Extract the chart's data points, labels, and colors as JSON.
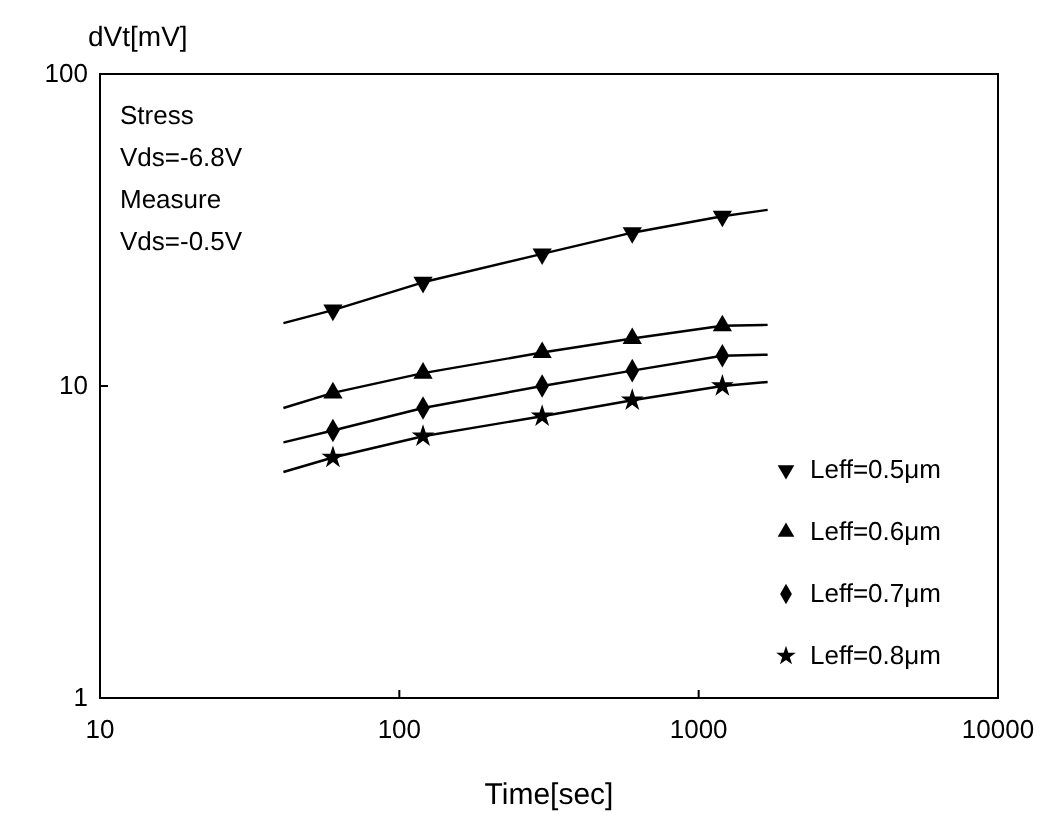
{
  "chart_data": {
    "type": "scatter",
    "xlabel": "Time[sec]",
    "ylabel": "dVt[mV]",
    "log": "xy",
    "xlim": [
      10,
      10000
    ],
    "ylim": [
      1,
      100
    ],
    "xticks": [
      10,
      100,
      1000,
      10000
    ],
    "yticks": [
      1,
      10,
      100
    ],
    "grid": false,
    "legend": "bottom right",
    "annotations": [
      "Stress",
      "Vds=-6.8V",
      "Measure",
      "Vds=-0.5V"
    ],
    "series": [
      {
        "name": "Leff=0.5μm",
        "color": "#000000",
        "marker": "triangle-down",
        "x": [
          60,
          120,
          300,
          600,
          1200
        ],
        "values": [
          17.5,
          21.5,
          26.5,
          31,
          35
        ]
      },
      {
        "name": "Leff=0.6μm",
        "color": "#000000",
        "marker": "triangle",
        "x": [
          60,
          120,
          300,
          600,
          1200
        ],
        "values": [
          9.5,
          11,
          12.8,
          14.2,
          15.6
        ]
      },
      {
        "name": "Leff=0.7μm",
        "color": "#000000",
        "marker": "diamond",
        "x": [
          60,
          120,
          300,
          600,
          1200
        ],
        "values": [
          7.2,
          8.5,
          10,
          11.2,
          12.5
        ]
      },
      {
        "name": "Leff=0.8μm",
        "color": "#000000",
        "marker": "star",
        "x": [
          60,
          120,
          300,
          600,
          1200
        ],
        "values": [
          5.9,
          6.9,
          8,
          9,
          10
        ]
      },
      {
        "type": "line",
        "color": "#000000",
        "marker": "none",
        "x": [
          41,
          60,
          120,
          300,
          600,
          1200,
          1700
        ],
        "values": [
          15.9,
          17.5,
          21.5,
          26.5,
          31,
          35,
          36.7
        ]
      },
      {
        "type": "line",
        "color": "#000000",
        "marker": "none",
        "x": [
          41,
          60,
          120,
          300,
          600,
          1200,
          1700
        ],
        "values": [
          8.5,
          9.5,
          11,
          12.8,
          14.2,
          15.6,
          15.7
        ]
      },
      {
        "type": "line",
        "color": "#000000",
        "marker": "none",
        "x": [
          41,
          60,
          120,
          300,
          600,
          1200,
          1700
        ],
        "values": [
          6.6,
          7.2,
          8.5,
          10,
          11.2,
          12.5,
          12.6
        ]
      },
      {
        "type": "line",
        "color": "#000000",
        "marker": "none",
        "x": [
          41,
          60,
          120,
          300,
          600,
          1200,
          1700
        ],
        "values": [
          5.3,
          5.9,
          6.9,
          8,
          9,
          10,
          10.3
        ]
      }
    ]
  }
}
